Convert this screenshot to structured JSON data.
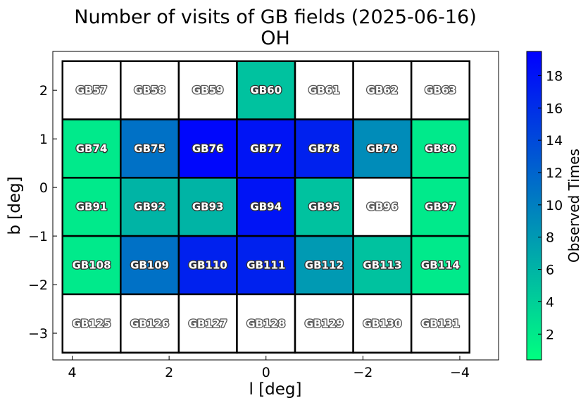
{
  "chart_data": {
    "type": "heatmap",
    "title": "Number of visits of GB fields (2025-06-16)",
    "subtitle": "OH",
    "xlabel": "l [deg]",
    "ylabel": "b [deg]",
    "xlim": [
      4.4,
      -4.8
    ],
    "ylim": [
      -3.55,
      2.8
    ],
    "x_ticks": [
      4,
      2,
      0,
      -2,
      -4
    ],
    "x_tick_labels": [
      "4",
      "2",
      "0",
      "−2",
      "−4"
    ],
    "y_ticks": [
      2,
      1,
      0,
      -1,
      -2,
      -3
    ],
    "y_tick_labels": [
      "2",
      "1",
      "0",
      "−1",
      "−2",
      "−3"
    ],
    "grid": false,
    "colorbar": {
      "label": "Observed Times",
      "range": [
        0.4,
        19.5
      ],
      "ticks": [
        2,
        4,
        6,
        8,
        10,
        12,
        14,
        16,
        18
      ],
      "tick_labels": [
        "2",
        "4",
        "6",
        "8",
        "10",
        "12",
        "14",
        "16",
        "18"
      ],
      "color_low": "#00ff80",
      "color_high": "#0000ff",
      "zero_color": "#ffffff"
    },
    "column_centers_l": [
      3.6,
      2.4,
      1.2,
      0.0,
      -1.2,
      -2.4,
      -3.6
    ],
    "row_centers_b": [
      2.0,
      0.8,
      -0.4,
      -1.6,
      -2.8
    ],
    "cell_width_l": 1.2,
    "cell_height_b": 1.2,
    "fields": [
      [
        "GB57",
        "GB58",
        "GB59",
        "GB60",
        "GB61",
        "GB62",
        "GB63"
      ],
      [
        "GB74",
        "GB75",
        "GB76",
        "GB77",
        "GB78",
        "GB79",
        "GB80"
      ],
      [
        "GB91",
        "GB92",
        "GB93",
        "GB94",
        "GB95",
        "GB96",
        "GB97"
      ],
      [
        "GB108",
        "GB109",
        "GB110",
        "GB111",
        "GB112",
        "GB113",
        "GB114"
      ],
      [
        "GB125",
        "GB126",
        "GB127",
        "GB128",
        "GB129",
        "GB130",
        "GB131"
      ]
    ],
    "values": [
      [
        0,
        0,
        0,
        5,
        0,
        0,
        0
      ],
      [
        2,
        11,
        19,
        18,
        17,
        9,
        2
      ],
      [
        2,
        6,
        6,
        18,
        5,
        0,
        2
      ],
      [
        2,
        11,
        17,
        17,
        8,
        5,
        2
      ],
      [
        0,
        0,
        0,
        0,
        0,
        0,
        0
      ]
    ]
  }
}
